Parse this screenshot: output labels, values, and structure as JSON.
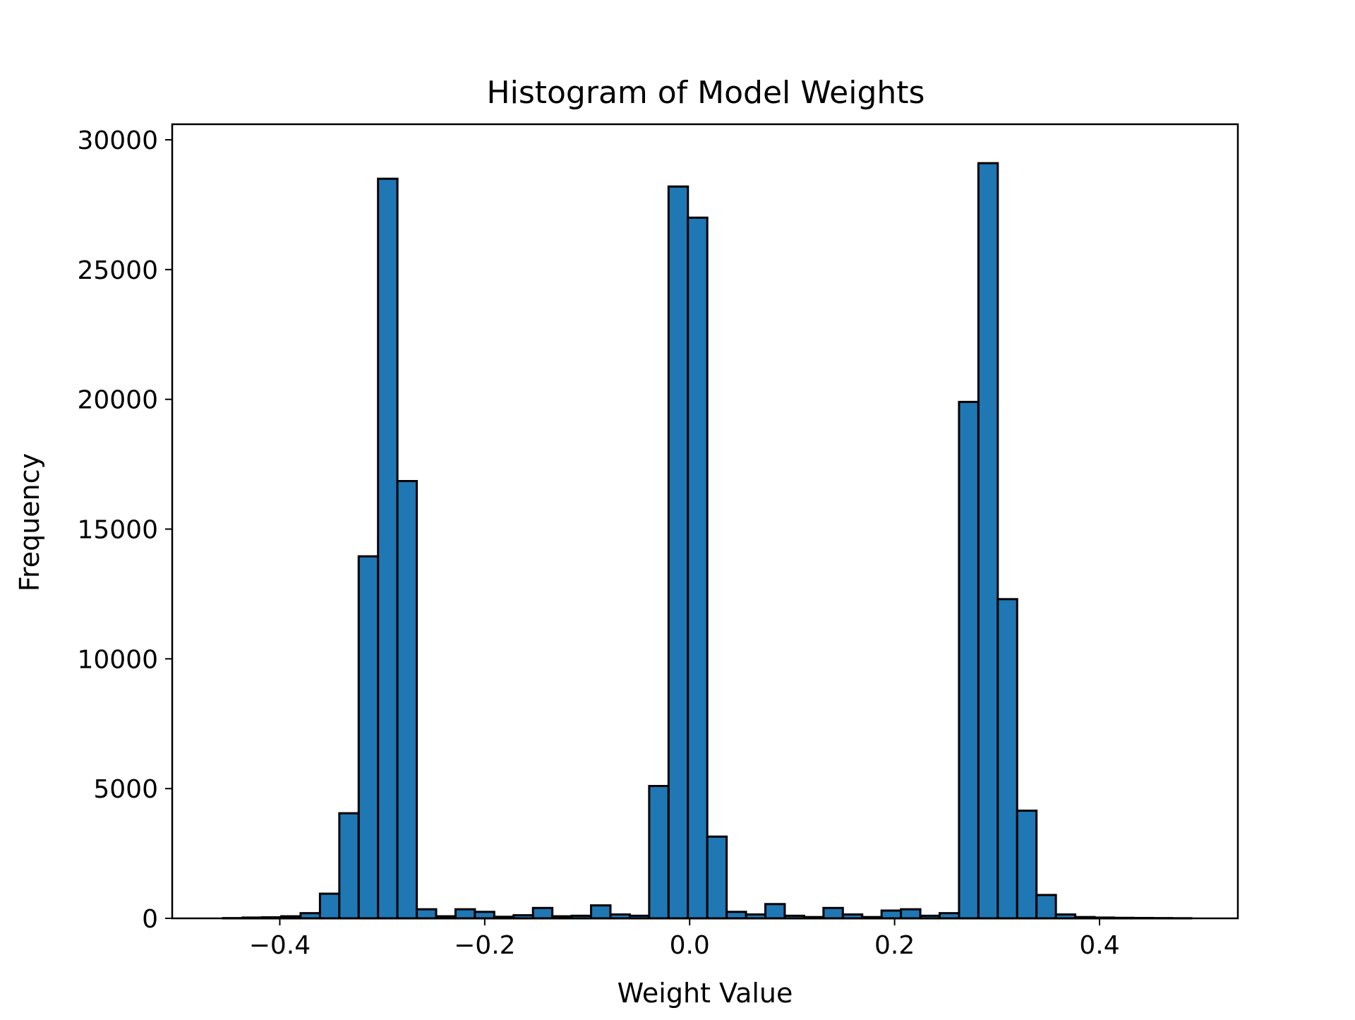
{
  "chart_data": {
    "type": "bar",
    "title": "Histogram of Model Weights",
    "xlabel": "Weight Value",
    "ylabel": "Frequency",
    "xlim": [
      -0.505,
      0.535
    ],
    "ylim": [
      0,
      30600
    ],
    "bin_width": 0.0189,
    "bin_left_edges": [
      -0.4553,
      -0.4364,
      -0.4175,
      -0.3986,
      -0.3797,
      -0.3608,
      -0.3419,
      -0.323,
      -0.3041,
      -0.2852,
      -0.2663,
      -0.2474,
      -0.2285,
      -0.2096,
      -0.1907,
      -0.1718,
      -0.1529,
      -0.134,
      -0.1151,
      -0.0962,
      -0.0773,
      -0.0584,
      -0.0395,
      -0.0206,
      -0.0017,
      0.0172,
      0.0361,
      0.055,
      0.0739,
      0.0928,
      0.1117,
      0.1306,
      0.1495,
      0.1684,
      0.1873,
      0.2062,
      0.2251,
      0.244,
      0.2629,
      0.2818,
      0.3007,
      0.3196,
      0.3385,
      0.3574,
      0.3763,
      0.3952,
      0.4141,
      0.433,
      0.4519,
      0.4708
    ],
    "values": [
      10,
      30,
      40,
      80,
      200,
      950,
      4050,
      13950,
      28500,
      16850,
      350,
      80,
      350,
      250,
      60,
      120,
      400,
      80,
      100,
      500,
      150,
      100,
      5100,
      28200,
      27000,
      3150,
      250,
      150,
      550,
      100,
      50,
      400,
      150,
      50,
      300,
      350,
      100,
      200,
      19900,
      29100,
      12300,
      4150,
      900,
      150,
      50,
      30,
      20,
      15,
      10,
      5
    ],
    "bar_color": "#1f77b4",
    "edge_color": "#000000",
    "x_ticks": [
      -0.4,
      -0.2,
      0.0,
      0.2,
      0.4
    ],
    "x_tick_labels": [
      "−0.4",
      "−0.2",
      "0.0",
      "0.2",
      "0.4"
    ],
    "y_ticks": [
      0,
      5000,
      10000,
      15000,
      20000,
      25000,
      30000
    ],
    "y_tick_labels": [
      "0",
      "5000",
      "10000",
      "15000",
      "20000",
      "25000",
      "30000"
    ],
    "grid": false,
    "legend": false
  }
}
